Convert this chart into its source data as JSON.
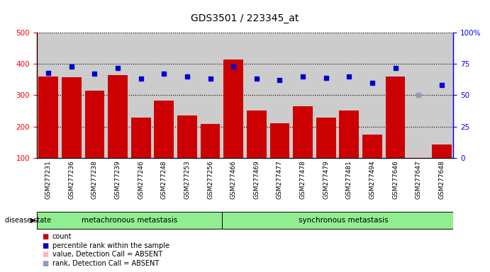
{
  "title": "GDS3501 / 223345_at",
  "samples": [
    "GSM277231",
    "GSM277236",
    "GSM277238",
    "GSM277239",
    "GSM277246",
    "GSM277248",
    "GSM277253",
    "GSM277256",
    "GSM277466",
    "GSM277469",
    "GSM277477",
    "GSM277478",
    "GSM277479",
    "GSM277481",
    "GSM277494",
    "GSM277646",
    "GSM277647",
    "GSM277648"
  ],
  "counts": [
    360,
    358,
    315,
    365,
    228,
    283,
    235,
    208,
    415,
    250,
    210,
    265,
    228,
    252,
    175,
    360,
    105,
    143
  ],
  "percentile_ranks": [
    68,
    73,
    67,
    72,
    63,
    67,
    65,
    63,
    73,
    63,
    62,
    65,
    64,
    65,
    60,
    72,
    50,
    58
  ],
  "absent_value_indices": [
    16
  ],
  "absent_rank_indices": [
    16
  ],
  "group1_label": "metachronous metastasis",
  "group1_count": 8,
  "group2_label": "synchronous metastasis",
  "group2_count": 10,
  "ylim_left": [
    100,
    500
  ],
  "ylim_right": [
    0,
    100
  ],
  "yticks_left": [
    100,
    200,
    300,
    400,
    500
  ],
  "yticks_right": [
    0,
    25,
    50,
    75,
    100
  ],
  "bar_color": "#CC0000",
  "bar_absent_color": "#FFB6C1",
  "dot_color": "#0000CC",
  "dot_absent_color": "#9999BB",
  "bg_color_bar": "#CCCCCC",
  "bg_color_group": "#90EE90",
  "disease_state_label": "disease state"
}
